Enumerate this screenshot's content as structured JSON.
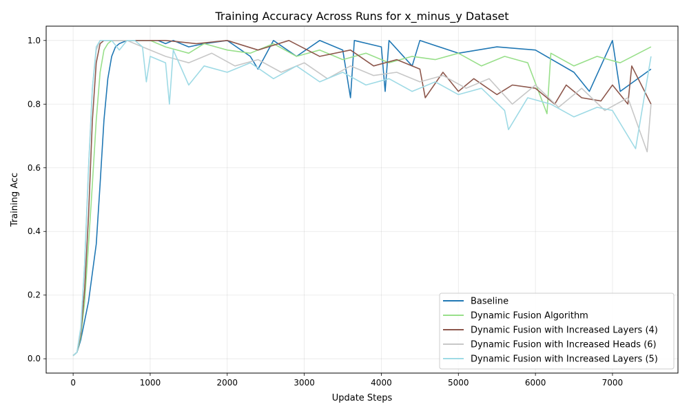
{
  "chart_data": {
    "type": "line",
    "title": "Training Accuracy Across Runs for x_minus_y Dataset",
    "xlabel": "Update Steps",
    "ylabel": "Training Acc",
    "xlim": [
      -350,
      7850
    ],
    "ylim": [
      -0.045,
      1.045
    ],
    "xticks": [
      0,
      1000,
      2000,
      3000,
      4000,
      5000,
      6000,
      7000
    ],
    "yticks": [
      0.0,
      0.2,
      0.4,
      0.6,
      0.8,
      1.0
    ],
    "ytick_labels": [
      "0.0",
      "0.2",
      "0.4",
      "0.6",
      "0.8",
      "1.0"
    ],
    "grid": true,
    "legend_position": "lower-right",
    "series": [
      {
        "name": "Baseline",
        "color": "#1f77b4",
        "x": [
          0,
          50,
          100,
          150,
          200,
          250,
          300,
          350,
          400,
          450,
          500,
          550,
          600,
          700,
          800,
          900,
          1000,
          1100,
          1200,
          1300,
          1500,
          1700,
          2000,
          2300,
          2400,
          2600,
          2900,
          3200,
          3500,
          3600,
          3650,
          4000,
          4050,
          4100,
          4400,
          4500,
          5000,
          5500,
          6000,
          6500,
          6700,
          7000,
          7100,
          7500
        ],
        "y": [
          0.01,
          0.02,
          0.06,
          0.12,
          0.18,
          0.27,
          0.36,
          0.55,
          0.75,
          0.88,
          0.95,
          0.98,
          0.99,
          1.0,
          1.0,
          1.0,
          1.0,
          1.0,
          0.99,
          1.0,
          0.98,
          0.99,
          1.0,
          0.95,
          0.91,
          1.0,
          0.95,
          1.0,
          0.97,
          0.82,
          1.0,
          0.98,
          0.84,
          1.0,
          0.92,
          1.0,
          0.96,
          0.98,
          0.97,
          0.9,
          0.84,
          1.0,
          0.84,
          0.91
        ]
      },
      {
        "name": "Dynamic Fusion Algorithm",
        "color": "#98df8a",
        "x": [
          0,
          50,
          100,
          150,
          200,
          250,
          300,
          350,
          400,
          450,
          500,
          550,
          600,
          700,
          800,
          900,
          1000,
          1200,
          1500,
          1700,
          2000,
          2300,
          2600,
          2900,
          3200,
          3500,
          3800,
          4100,
          4400,
          4700,
          5000,
          5300,
          5600,
          5900,
          6150,
          6200,
          6500,
          6800,
          7100,
          7500
        ],
        "y": [
          0.01,
          0.02,
          0.07,
          0.18,
          0.36,
          0.55,
          0.75,
          0.9,
          0.97,
          0.99,
          1.0,
          1.0,
          1.0,
          1.0,
          1.0,
          1.0,
          1.0,
          0.98,
          0.96,
          0.99,
          0.97,
          0.96,
          0.99,
          0.95,
          0.97,
          0.94,
          0.96,
          0.93,
          0.95,
          0.94,
          0.96,
          0.92,
          0.95,
          0.93,
          0.77,
          0.96,
          0.92,
          0.95,
          0.93,
          0.98
        ]
      },
      {
        "name": "Dynamic Fusion with Increased Layers (4)",
        "color": "#8c564b",
        "x": [
          0,
          50,
          100,
          150,
          200,
          250,
          300,
          350,
          400,
          450,
          500,
          700,
          900,
          1200,
          1600,
          2000,
          2400,
          2800,
          3200,
          3600,
          3900,
          4200,
          4500,
          4570,
          4800,
          5000,
          5200,
          5500,
          5700,
          6000,
          6250,
          6400,
          6600,
          6850,
          7000,
          7200,
          7250,
          7500
        ],
        "y": [
          0.01,
          0.02,
          0.08,
          0.22,
          0.45,
          0.75,
          0.93,
          0.99,
          1.0,
          1.0,
          1.0,
          1.0,
          1.0,
          1.0,
          0.99,
          1.0,
          0.97,
          1.0,
          0.95,
          0.97,
          0.92,
          0.94,
          0.91,
          0.82,
          0.9,
          0.84,
          0.88,
          0.83,
          0.86,
          0.85,
          0.8,
          0.86,
          0.82,
          0.81,
          0.86,
          0.8,
          0.92,
          0.8
        ]
      },
      {
        "name": "Dynamic Fusion with Increased Heads (6)",
        "color": "#c7c7c7",
        "x": [
          0,
          50,
          100,
          150,
          200,
          250,
          300,
          350,
          400,
          450,
          500,
          700,
          900,
          1200,
          1500,
          1800,
          2100,
          2400,
          2700,
          3000,
          3300,
          3600,
          3900,
          4200,
          4500,
          4800,
          5100,
          5400,
          5700,
          6000,
          6300,
          6600,
          6900,
          7200,
          7450,
          7500
        ],
        "y": [
          0.01,
          0.02,
          0.09,
          0.3,
          0.6,
          0.85,
          0.97,
          1.0,
          1.0,
          1.0,
          1.0,
          1.0,
          0.98,
          0.95,
          0.93,
          0.96,
          0.92,
          0.94,
          0.9,
          0.93,
          0.88,
          0.92,
          0.89,
          0.9,
          0.87,
          0.89,
          0.85,
          0.88,
          0.8,
          0.86,
          0.79,
          0.85,
          0.78,
          0.82,
          0.65,
          0.8
        ]
      },
      {
        "name": "Dynamic Fusion with Increased Layers (5)",
        "color": "#9edae5",
        "x": [
          0,
          50,
          100,
          150,
          200,
          250,
          300,
          350,
          400,
          450,
          500,
          600,
          700,
          800,
          900,
          950,
          1000,
          1200,
          1250,
          1300,
          1500,
          1700,
          2000,
          2300,
          2600,
          2900,
          3200,
          3500,
          3800,
          4100,
          4400,
          4700,
          5000,
          5300,
          5600,
          5650,
          5900,
          6200,
          6500,
          6800,
          7000,
          7300,
          7500
        ],
        "y": [
          0.01,
          0.02,
          0.1,
          0.3,
          0.6,
          0.85,
          0.98,
          1.0,
          1.0,
          1.0,
          1.0,
          0.97,
          1.0,
          1.0,
          0.98,
          0.87,
          0.95,
          0.93,
          0.8,
          0.97,
          0.86,
          0.92,
          0.9,
          0.93,
          0.88,
          0.92,
          0.87,
          0.9,
          0.86,
          0.88,
          0.84,
          0.87,
          0.83,
          0.85,
          0.78,
          0.72,
          0.82,
          0.8,
          0.76,
          0.79,
          0.78,
          0.66,
          0.95
        ]
      }
    ]
  }
}
